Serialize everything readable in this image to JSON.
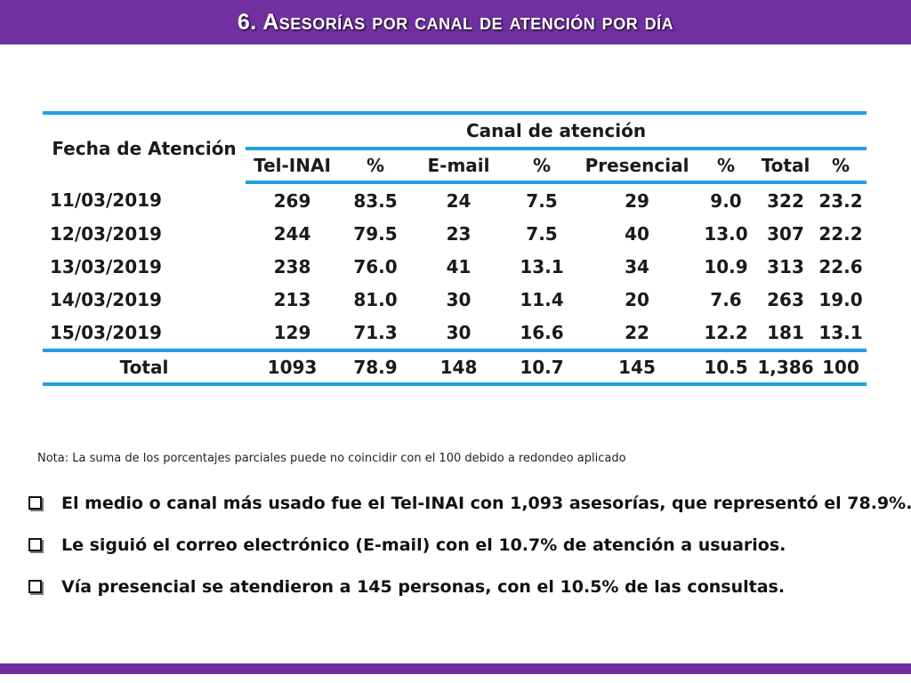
{
  "title": "6. Asesorías por canal de atención por día",
  "table": {
    "date_header": "Fecha de Atención",
    "group_header": "Canal de atención",
    "columns": [
      "Tel-INAI",
      "%",
      "E-mail",
      "%",
      "Presencial",
      "%",
      "Total",
      "%"
    ],
    "rows": [
      [
        "11/03/2019",
        "269",
        "83.5",
        "24",
        "7.5",
        "29",
        "9.0",
        "322",
        "23.2"
      ],
      [
        "12/03/2019",
        "244",
        "79.5",
        "23",
        "7.5",
        "40",
        "13.0",
        "307",
        "22.2"
      ],
      [
        "13/03/2019",
        "238",
        "76.0",
        "41",
        "13.1",
        "34",
        "10.9",
        "313",
        "22.6"
      ],
      [
        "14/03/2019",
        "213",
        "81.0",
        "30",
        "11.4",
        "20",
        "7.6",
        "263",
        "19.0"
      ],
      [
        "15/03/2019",
        "129",
        "71.3",
        "30",
        "16.6",
        "22",
        "12.2",
        "181",
        "13.1"
      ]
    ],
    "total_row": [
      "Total",
      "1093",
      "78.9",
      "148",
      "10.7",
      "145",
      "10.5",
      "1,386",
      "100"
    ]
  },
  "note": "Nota: La suma de los porcentajes parciales puede no coincidir con el 100 debido a redondeo aplicado",
  "bullets": [
    "El medio o canal más usado fue el Tel-INAI con 1,093 asesorías, que representó el 78.9%.",
    "Le siguió el correo electrónico (E-mail) con el 10.7% de atención a usuarios.",
    "Vía presencial se atendieron a 145 personas, con el 10.5% de las consultas."
  ],
  "colors": {
    "accent_purple": "#7030a0",
    "table_rule_blue": "#1fa0e0"
  },
  "icons": {
    "bullet": "checkbox-square-icon"
  }
}
